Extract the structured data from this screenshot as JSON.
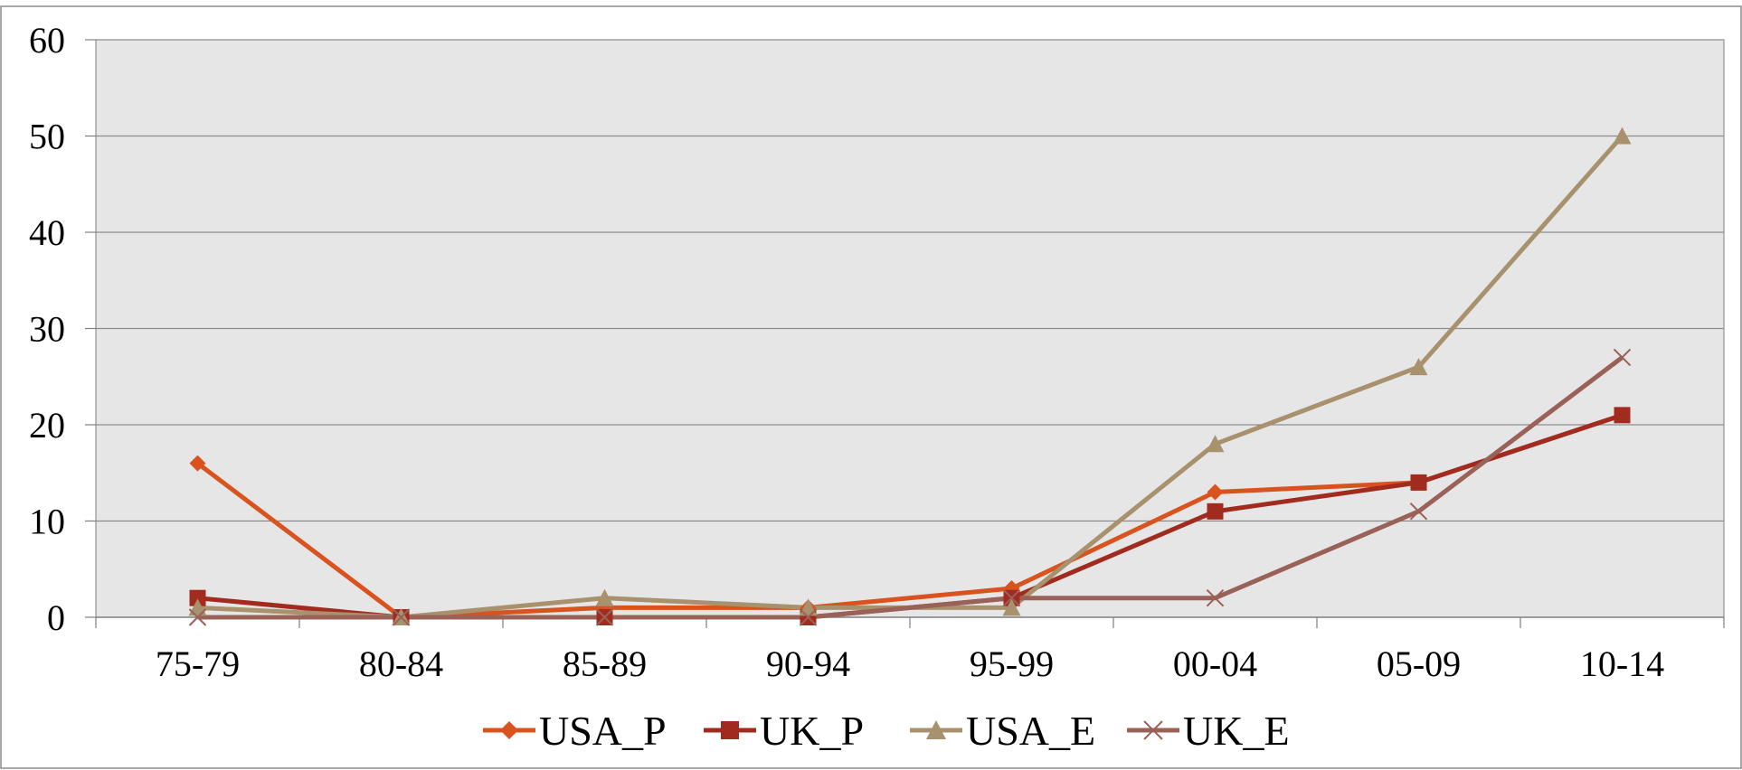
{
  "chart_data": {
    "type": "line",
    "title": "",
    "xlabel": "",
    "ylabel": "",
    "categories": [
      "75-79",
      "80-84",
      "85-89",
      "90-94",
      "95-99",
      "00-04",
      "05-09",
      "10-14"
    ],
    "ylim": [
      0,
      60
    ],
    "yticks": [
      0,
      10,
      20,
      30,
      40,
      50,
      60
    ],
    "grid": true,
    "legend_position": "bottom",
    "series": [
      {
        "name": "USA_P",
        "values": [
          16,
          0,
          1,
          1,
          3,
          13,
          14,
          21
        ],
        "color": "#d9531e",
        "marker": "diamond"
      },
      {
        "name": "UK_P",
        "values": [
          2,
          0,
          0,
          0,
          2,
          11,
          14,
          21
        ],
        "color": "#a12b1f",
        "marker": "square"
      },
      {
        "name": "USA_E",
        "values": [
          1,
          0,
          2,
          1,
          1,
          18,
          26,
          50
        ],
        "color": "#a8916d",
        "marker": "triangle"
      },
      {
        "name": "UK_E",
        "values": [
          0,
          0,
          0,
          0,
          2,
          2,
          11,
          27
        ],
        "color": "#9a6158",
        "marker": "x"
      }
    ],
    "colors": {
      "plot_background": "#e6e6e6",
      "gridline": "#8c8c8c",
      "frame": "#7f7f7f"
    }
  }
}
